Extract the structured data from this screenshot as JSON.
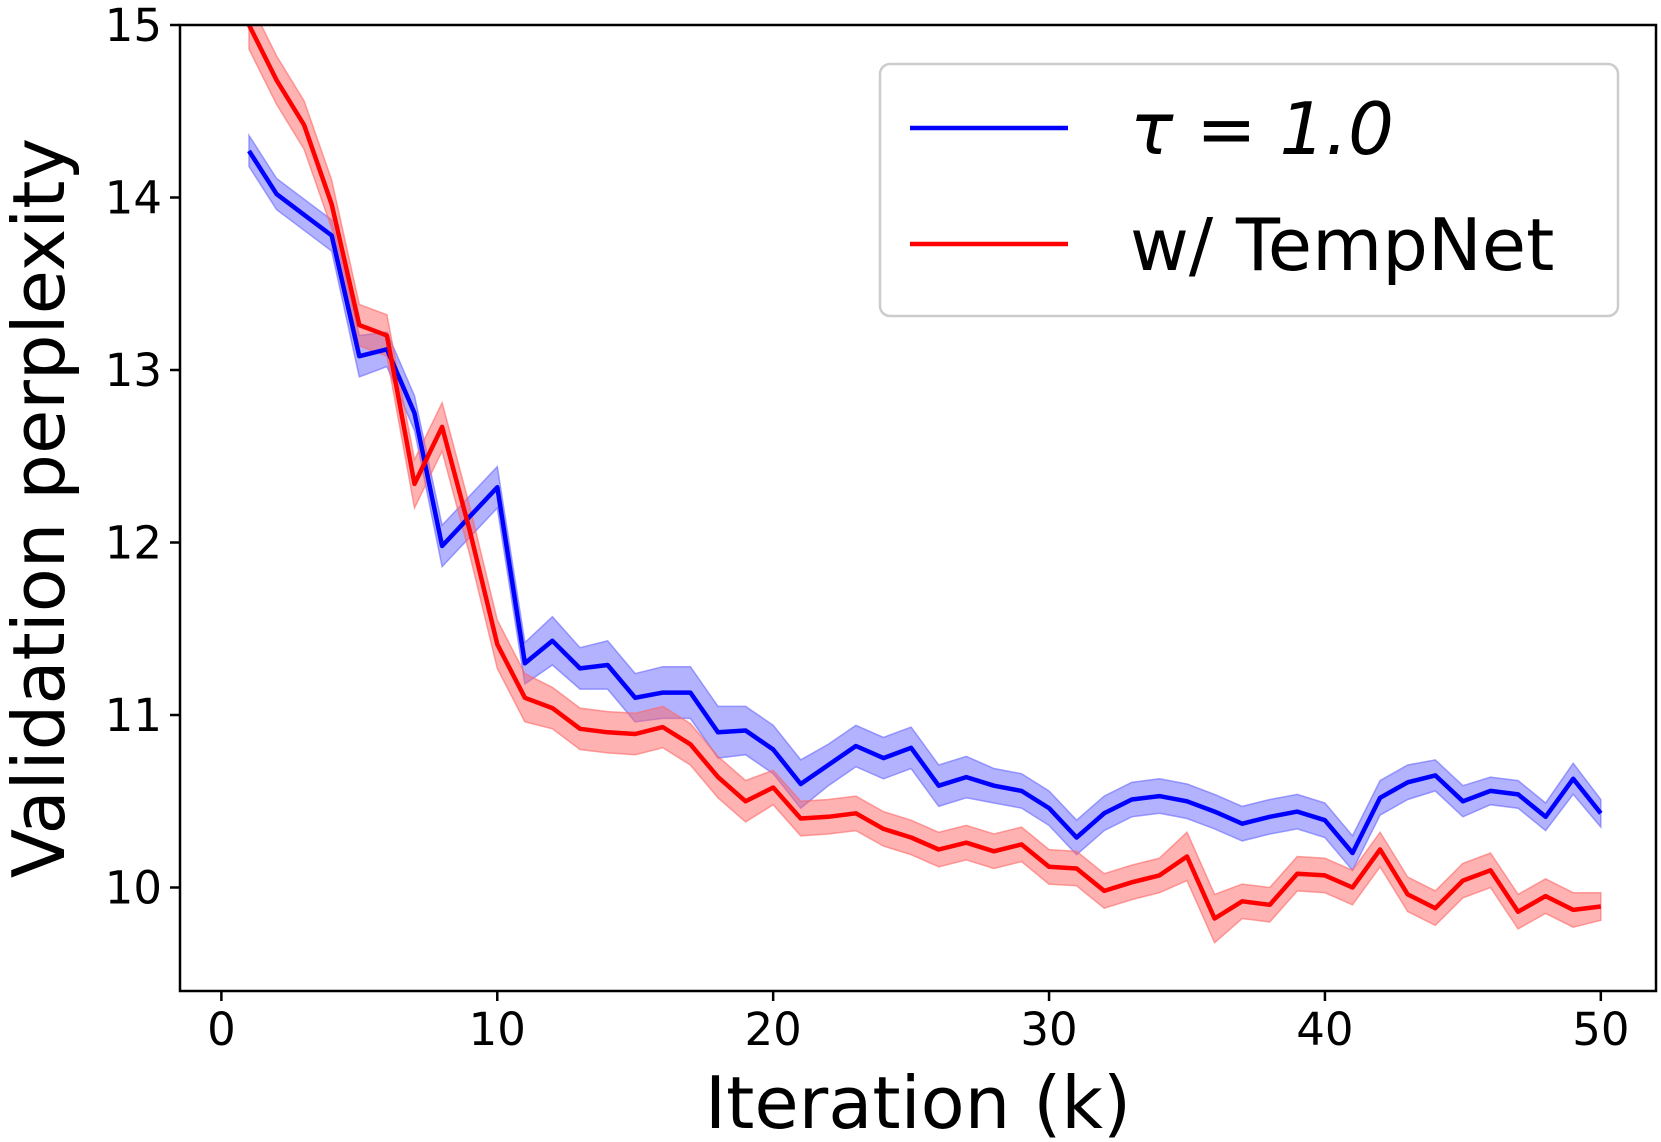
{
  "chart_data": {
    "type": "line",
    "title": "",
    "xlabel": "Iteration (k)",
    "ylabel": "Validation perplexity",
    "xlim": [
      -1.5,
      52
    ],
    "ylim": [
      9.4,
      15
    ],
    "xticks": [
      0,
      10,
      20,
      30,
      40,
      50
    ],
    "yticks": [
      10,
      11,
      12,
      13,
      14,
      15
    ],
    "grid": false,
    "legend_position": "top-right",
    "x": [
      1,
      2,
      3,
      4,
      5,
      6,
      7,
      8,
      9,
      10,
      11,
      12,
      13,
      14,
      15,
      16,
      17,
      18,
      19,
      20,
      21,
      22,
      23,
      24,
      25,
      26,
      27,
      28,
      29,
      30,
      31,
      32,
      33,
      34,
      35,
      36,
      37,
      38,
      39,
      40,
      41,
      42,
      43,
      44,
      45,
      46,
      47,
      48,
      49,
      50
    ],
    "series": [
      {
        "name": "τ = 1.0",
        "color": "#0000ff",
        "band_color": "#6666ff",
        "values": [
          14.27,
          14.02,
          13.9,
          13.78,
          13.08,
          13.12,
          12.75,
          11.98,
          12.15,
          12.32,
          11.3,
          11.43,
          11.27,
          11.29,
          11.1,
          11.13,
          11.13,
          10.9,
          10.91,
          10.8,
          10.6,
          10.71,
          10.82,
          10.75,
          10.81,
          10.59,
          10.64,
          10.59,
          10.56,
          10.46,
          10.29,
          10.43,
          10.51,
          10.53,
          10.5,
          10.44,
          10.37,
          10.41,
          10.44,
          10.39,
          10.2,
          10.52,
          10.61,
          10.65,
          10.5,
          10.56,
          10.54,
          10.41,
          10.63,
          10.43
        ],
        "band": [
          0.09,
          0.09,
          0.09,
          0.09,
          0.12,
          0.1,
          0.1,
          0.12,
          0.12,
          0.12,
          0.12,
          0.14,
          0.12,
          0.14,
          0.14,
          0.15,
          0.15,
          0.15,
          0.14,
          0.14,
          0.14,
          0.12,
          0.12,
          0.12,
          0.12,
          0.12,
          0.12,
          0.1,
          0.1,
          0.1,
          0.1,
          0.1,
          0.1,
          0.1,
          0.1,
          0.1,
          0.1,
          0.1,
          0.1,
          0.1,
          0.1,
          0.1,
          0.1,
          0.09,
          0.09,
          0.08,
          0.08,
          0.08,
          0.09,
          0.08
        ]
      },
      {
        "name": "w/ TempNet",
        "color": "#ff0000",
        "band_color": "#ff6666",
        "values": [
          15.0,
          14.68,
          14.42,
          13.96,
          13.26,
          13.2,
          12.34,
          12.67,
          12.07,
          11.41,
          11.1,
          11.04,
          10.92,
          10.9,
          10.89,
          10.93,
          10.83,
          10.64,
          10.5,
          10.58,
          10.4,
          10.41,
          10.43,
          10.34,
          10.29,
          10.22,
          10.26,
          10.21,
          10.25,
          10.12,
          10.11,
          9.98,
          10.03,
          10.07,
          10.18,
          9.82,
          9.92,
          9.9,
          10.08,
          10.07,
          10.0,
          10.22,
          9.96,
          9.88,
          10.04,
          10.1,
          9.86,
          9.95,
          9.87,
          9.89
        ],
        "band": [
          0.14,
          0.14,
          0.14,
          0.14,
          0.12,
          0.12,
          0.14,
          0.14,
          0.14,
          0.14,
          0.14,
          0.12,
          0.12,
          0.12,
          0.12,
          0.12,
          0.12,
          0.12,
          0.12,
          0.1,
          0.1,
          0.1,
          0.1,
          0.1,
          0.1,
          0.1,
          0.1,
          0.1,
          0.1,
          0.1,
          0.1,
          0.1,
          0.1,
          0.1,
          0.14,
          0.14,
          0.1,
          0.1,
          0.1,
          0.1,
          0.1,
          0.1,
          0.1,
          0.1,
          0.1,
          0.1,
          0.1,
          0.1,
          0.1,
          0.08
        ]
      }
    ]
  }
}
